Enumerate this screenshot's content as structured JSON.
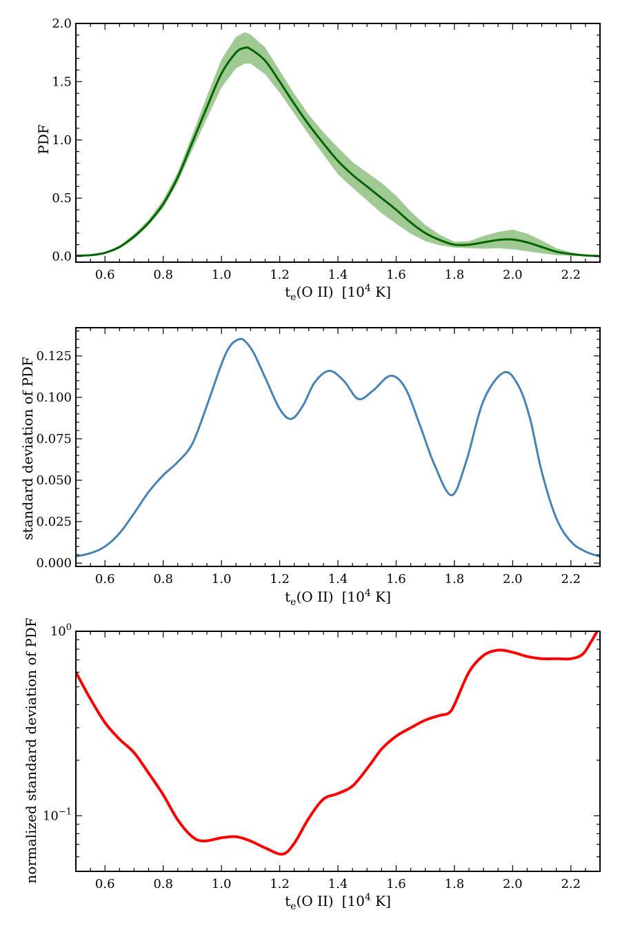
{
  "chart_data": [
    {
      "type": "area",
      "title": "",
      "xlabel": "t_e(O II) [10^4 K]",
      "ylabel": "PDF",
      "xlim": [
        0.5,
        2.3
      ],
      "ylim": [
        -0.05,
        2.0
      ],
      "yscale": "linear",
      "xticks": [
        0.6,
        0.8,
        1.0,
        1.2,
        1.4,
        1.6,
        1.8,
        2.0,
        2.2
      ],
      "xtick_labels": [
        "0.6",
        "0.8",
        "1.0",
        "1.2",
        "1.4",
        "1.6",
        "1.8",
        "2.0",
        "2.2"
      ],
      "yticks": [
        0.0,
        0.5,
        1.0,
        1.5,
        2.0
      ],
      "ytick_labels": [
        "0.0",
        "0.5",
        "1.0",
        "1.5",
        "2.0"
      ],
      "line_color": "#006400",
      "band_color": "#8fbf80",
      "x": [
        0.5,
        0.55,
        0.6,
        0.65,
        0.7,
        0.75,
        0.8,
        0.85,
        0.9,
        0.95,
        1.0,
        1.05,
        1.08,
        1.1,
        1.15,
        1.2,
        1.25,
        1.3,
        1.35,
        1.4,
        1.45,
        1.5,
        1.55,
        1.6,
        1.65,
        1.7,
        1.75,
        1.8,
        1.85,
        1.9,
        1.95,
        2.0,
        2.05,
        2.1,
        2.15,
        2.2,
        2.25,
        2.3
      ],
      "y": [
        0.005,
        0.01,
        0.03,
        0.08,
        0.17,
        0.29,
        0.45,
        0.68,
        0.98,
        1.28,
        1.57,
        1.75,
        1.79,
        1.78,
        1.68,
        1.5,
        1.31,
        1.13,
        0.97,
        0.82,
        0.7,
        0.6,
        0.5,
        0.4,
        0.29,
        0.2,
        0.14,
        0.1,
        0.1,
        0.12,
        0.14,
        0.145,
        0.12,
        0.08,
        0.04,
        0.02,
        0.008,
        0.003
      ],
      "y_low": [
        0.003,
        0.007,
        0.023,
        0.068,
        0.15,
        0.265,
        0.415,
        0.635,
        0.915,
        1.185,
        1.45,
        1.615,
        1.655,
        1.655,
        1.565,
        1.405,
        1.225,
        1.045,
        0.875,
        0.705,
        0.59,
        0.48,
        0.37,
        0.28,
        0.195,
        0.13,
        0.095,
        0.075,
        0.07,
        0.065,
        0.07,
        0.06,
        0.045,
        0.025,
        0.01,
        0.005,
        0.002,
        0.001
      ],
      "y_high": [
        0.007,
        0.013,
        0.037,
        0.092,
        0.19,
        0.315,
        0.485,
        0.725,
        1.045,
        1.375,
        1.69,
        1.885,
        1.925,
        1.905,
        1.795,
        1.595,
        1.395,
        1.215,
        1.065,
        0.935,
        0.81,
        0.72,
        0.63,
        0.52,
        0.385,
        0.27,
        0.185,
        0.125,
        0.13,
        0.175,
        0.21,
        0.23,
        0.195,
        0.135,
        0.07,
        0.035,
        0.014,
        0.005
      ]
    },
    {
      "type": "line",
      "title": "",
      "xlabel": "t_e(O II) [10^4 K]",
      "ylabel": "standard deviation of PDF",
      "xlim": [
        0.5,
        2.3
      ],
      "ylim": [
        -0.002,
        0.142
      ],
      "yscale": "linear",
      "xticks": [
        0.6,
        0.8,
        1.0,
        1.2,
        1.4,
        1.6,
        1.8,
        2.0,
        2.2
      ],
      "xtick_labels": [
        "0.6",
        "0.8",
        "1.0",
        "1.2",
        "1.4",
        "1.6",
        "1.8",
        "2.0",
        "2.2"
      ],
      "yticks": [
        0.0,
        0.025,
        0.05,
        0.075,
        0.1,
        0.125
      ],
      "ytick_labels": [
        "0.000",
        "0.025",
        "0.050",
        "0.075",
        "0.100",
        "0.125"
      ],
      "line_color": "#4682b4",
      "x": [
        0.5,
        0.55,
        0.6,
        0.65,
        0.7,
        0.75,
        0.8,
        0.85,
        0.9,
        0.95,
        1.0,
        1.03,
        1.06,
        1.08,
        1.11,
        1.15,
        1.2,
        1.24,
        1.28,
        1.32,
        1.37,
        1.42,
        1.47,
        1.52,
        1.58,
        1.63,
        1.68,
        1.73,
        1.79,
        1.84,
        1.9,
        1.97,
        2.02,
        2.06,
        2.1,
        2.15,
        2.2,
        2.25,
        2.3
      ],
      "y": [
        0.004,
        0.006,
        0.01,
        0.018,
        0.03,
        0.043,
        0.053,
        0.061,
        0.072,
        0.095,
        0.12,
        0.131,
        0.135,
        0.134,
        0.127,
        0.112,
        0.093,
        0.087,
        0.095,
        0.109,
        0.116,
        0.11,
        0.099,
        0.104,
        0.113,
        0.106,
        0.084,
        0.06,
        0.041,
        0.061,
        0.098,
        0.115,
        0.107,
        0.087,
        0.055,
        0.027,
        0.013,
        0.007,
        0.004
      ]
    },
    {
      "type": "line",
      "title": "",
      "xlabel": "t_e(O II) [10^4 K]",
      "ylabel": "normalized standard deviation of PDF",
      "xlim": [
        0.5,
        2.3
      ],
      "ylim": [
        0.05,
        1.0
      ],
      "yscale": "log",
      "xticks": [
        0.6,
        0.8,
        1.0,
        1.2,
        1.4,
        1.6,
        1.8,
        2.0,
        2.2
      ],
      "xtick_labels": [
        "0.6",
        "0.8",
        "1.0",
        "1.2",
        "1.4",
        "1.6",
        "1.8",
        "2.0",
        "2.2"
      ],
      "ytick_labels": [
        "10^-1",
        "10^0"
      ],
      "line_color": "#ff0000",
      "x": [
        0.5,
        0.55,
        0.6,
        0.65,
        0.7,
        0.75,
        0.8,
        0.85,
        0.9,
        0.94,
        1.0,
        1.05,
        1.1,
        1.15,
        1.21,
        1.25,
        1.3,
        1.35,
        1.4,
        1.45,
        1.5,
        1.55,
        1.6,
        1.65,
        1.7,
        1.75,
        1.78,
        1.8,
        1.85,
        1.9,
        1.95,
        2.0,
        2.05,
        2.1,
        2.15,
        2.2,
        2.24,
        2.27,
        2.29
      ],
      "y": [
        0.6,
        0.43,
        0.32,
        0.26,
        0.22,
        0.17,
        0.13,
        0.095,
        0.077,
        0.073,
        0.076,
        0.077,
        0.073,
        0.067,
        0.062,
        0.071,
        0.097,
        0.123,
        0.132,
        0.145,
        0.18,
        0.23,
        0.27,
        0.3,
        0.33,
        0.35,
        0.36,
        0.4,
        0.6,
        0.74,
        0.79,
        0.77,
        0.73,
        0.71,
        0.71,
        0.71,
        0.75,
        0.88,
        1.0
      ]
    }
  ]
}
